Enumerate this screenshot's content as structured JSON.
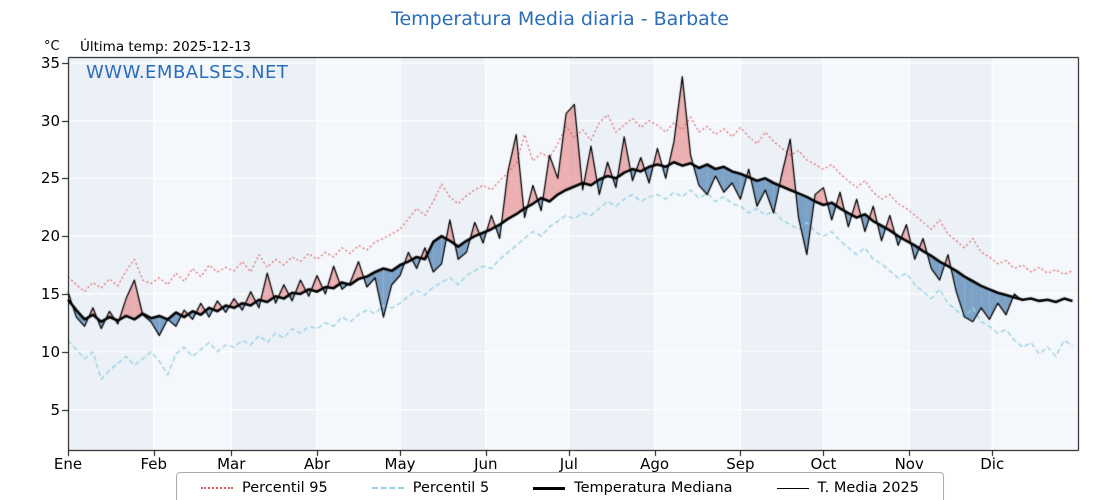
{
  "header": {
    "title": "Temperatura Media diaria - Barbate",
    "unit_label": "°C",
    "last_temp": "Última temp: 2025-12-13",
    "watermark": "WWW.EMBALSES.NET"
  },
  "colors": {
    "title": "#2a6db8",
    "watermark": "#2a6db8",
    "p95": "#dd5a5a",
    "p5": "#9ad1e6",
    "median": "#000000",
    "t2025": "#000000",
    "fill_above": "rgba(228,105,105,0.5)",
    "fill_below": "rgba(92,138,184,0.78)",
    "band": "#ecf1f7",
    "band_alt": "#f4f7fb",
    "grid": "#ffffff",
    "frame": "#000000"
  },
  "legend": {
    "items": [
      {
        "label": "Percentil 95",
        "style": "dotted",
        "color": "#dd5a5a"
      },
      {
        "label": "Percentil 5",
        "style": "dashed",
        "color": "#9ad1e6"
      },
      {
        "label": "Temperatura Mediana",
        "style": "solid-thick",
        "color": "#000000"
      },
      {
        "label": "T. Media 2025",
        "style": "solid-thin",
        "color": "#000000"
      }
    ]
  },
  "chart_data": {
    "type": "line",
    "title": "Temperatura Media diaria - Barbate",
    "xlabel": "",
    "ylabel": "°C",
    "xlim": [
      0,
      365
    ],
    "ylim": [
      1.5,
      35.5
    ],
    "grid": true,
    "legend_position": "bottom",
    "x_unit": "day_of_year",
    "x_step": 3,
    "x_tick_labels": [
      "Ene",
      "Feb",
      "Mar",
      "Abr",
      "May",
      "Jun",
      "Jul",
      "Ago",
      "Sep",
      "Oct",
      "Nov",
      "Dic"
    ],
    "month_start_days": [
      0,
      31,
      59,
      90,
      120,
      151,
      181,
      212,
      243,
      273,
      304,
      334
    ],
    "y_ticks": [
      5,
      10,
      15,
      20,
      25,
      30,
      35
    ],
    "series": [
      {
        "name": "Percentil 95",
        "values": [
          16.5,
          15.8,
          15.2,
          16.0,
          15.5,
          16.3,
          15.7,
          17.0,
          18.0,
          16.2,
          15.9,
          16.4,
          15.8,
          16.8,
          16.1,
          17.2,
          16.5,
          17.5,
          16.9,
          17.3,
          17.0,
          17.8,
          16.9,
          18.4,
          17.3,
          18.0,
          17.5,
          18.2,
          17.8,
          18.5,
          18.0,
          18.6,
          18.2,
          19.0,
          18.5,
          19.2,
          18.8,
          19.5,
          19.8,
          20.2,
          20.6,
          21.5,
          22.4,
          21.8,
          23.0,
          24.5,
          23.4,
          22.8,
          23.5,
          24.0,
          24.4,
          24.0,
          24.8,
          25.5,
          26.3,
          28.8,
          26.5,
          27.2,
          26.8,
          28.0,
          29.5,
          28.5,
          29.2,
          28.3,
          29.8,
          30.5,
          29.0,
          29.6,
          30.2,
          29.4,
          30.0,
          29.6,
          29.0,
          29.8,
          29.2,
          30.3,
          29.0,
          29.5,
          28.8,
          29.3,
          28.6,
          29.4,
          28.6,
          28.0,
          29.0,
          28.2,
          27.6,
          27.0,
          27.4,
          26.6,
          26.2,
          25.8,
          26.2,
          25.4,
          24.8,
          24.2,
          24.8,
          23.8,
          23.2,
          23.6,
          22.8,
          22.4,
          21.8,
          21.2,
          20.6,
          21.4,
          20.2,
          19.6,
          19.0,
          19.8,
          18.6,
          18.2,
          17.6,
          17.9,
          17.2,
          17.5,
          16.9,
          17.3,
          16.8,
          17.1,
          16.7,
          17.0
        ]
      },
      {
        "name": "Percentil 5",
        "values": [
          11.0,
          10.2,
          9.4,
          10.0,
          7.6,
          8.4,
          9.0,
          9.6,
          8.8,
          9.4,
          10.0,
          9.2,
          8.0,
          9.8,
          10.4,
          9.6,
          10.2,
          10.8,
          10.0,
          10.6,
          10.4,
          11.0,
          10.6,
          11.4,
          10.8,
          11.6,
          11.2,
          12.0,
          11.6,
          12.2,
          12.0,
          12.5,
          12.2,
          13.0,
          12.6,
          13.2,
          13.6,
          13.3,
          14.0,
          13.8,
          14.2,
          14.8,
          15.3,
          14.9,
          15.6,
          16.0,
          16.4,
          15.8,
          16.6,
          17.0,
          17.4,
          17.2,
          18.0,
          18.6,
          19.2,
          19.8,
          20.4,
          20.0,
          20.8,
          21.3,
          21.8,
          21.5,
          22.0,
          21.8,
          22.4,
          23.0,
          22.6,
          23.2,
          23.6,
          23.0,
          23.4,
          23.6,
          23.2,
          23.8,
          23.4,
          24.0,
          23.3,
          23.7,
          23.0,
          23.4,
          22.8,
          22.6,
          22.0,
          22.4,
          21.8,
          22.2,
          21.4,
          21.0,
          20.6,
          21.2,
          20.4,
          20.0,
          20.4,
          19.6,
          19.0,
          18.4,
          19.0,
          18.0,
          17.6,
          17.0,
          16.4,
          16.8,
          15.8,
          15.2,
          14.6,
          15.4,
          14.2,
          13.6,
          13.0,
          13.8,
          12.6,
          12.2,
          11.6,
          11.9,
          11.0,
          10.4,
          10.8,
          9.8,
          10.4,
          9.6,
          11.0,
          10.5
        ]
      },
      {
        "name": "Temperatura Mediana",
        "values": [
          14.5,
          13.6,
          12.8,
          13.2,
          12.6,
          13.0,
          12.7,
          13.1,
          12.8,
          13.3,
          12.9,
          13.1,
          12.8,
          13.4,
          13.0,
          13.5,
          13.2,
          13.8,
          13.5,
          14.0,
          13.8,
          14.2,
          14.0,
          14.5,
          14.3,
          14.8,
          14.6,
          15.1,
          15.0,
          15.4,
          15.2,
          15.6,
          15.5,
          16.0,
          15.8,
          16.3,
          16.5,
          16.9,
          17.2,
          17.0,
          17.5,
          17.8,
          18.2,
          18.0,
          19.5,
          20.0,
          19.6,
          19.1,
          19.6,
          20.0,
          20.3,
          20.6,
          21.0,
          21.5,
          21.9,
          22.4,
          22.8,
          23.3,
          23.0,
          23.6,
          24.0,
          24.3,
          24.6,
          24.4,
          24.9,
          25.2,
          25.0,
          25.5,
          25.8,
          25.6,
          26.0,
          26.2,
          26.0,
          26.4,
          26.1,
          26.3,
          25.9,
          26.2,
          25.8,
          26.0,
          25.6,
          25.4,
          25.1,
          24.8,
          25.0,
          24.6,
          24.3,
          24.0,
          23.7,
          23.4,
          23.0,
          22.7,
          22.9,
          22.4,
          22.0,
          21.6,
          21.9,
          21.3,
          20.9,
          20.5,
          20.0,
          19.6,
          19.2,
          18.7,
          18.3,
          17.8,
          17.4,
          17.0,
          16.5,
          16.1,
          15.7,
          15.4,
          15.1,
          14.9,
          14.7,
          14.5,
          14.6,
          14.4,
          14.5,
          14.3,
          14.6,
          14.4
        ]
      },
      {
        "name": "T. Media 2025",
        "values": [
          15.2,
          13.0,
          12.2,
          13.8,
          12.0,
          13.5,
          12.4,
          14.6,
          16.2,
          13.2,
          12.6,
          11.4,
          12.8,
          12.2,
          13.6,
          12.8,
          14.2,
          13.0,
          14.4,
          13.4,
          14.6,
          13.6,
          15.2,
          13.8,
          16.8,
          14.2,
          15.8,
          14.4,
          16.2,
          14.8,
          16.6,
          15.0,
          17.4,
          15.4,
          16.0,
          17.8,
          15.6,
          16.4,
          13.0,
          15.8,
          16.6,
          18.6,
          17.2,
          19.0,
          16.9,
          17.6,
          21.4,
          18.0,
          18.6,
          21.2,
          19.4,
          21.8,
          19.8,
          25.6,
          28.8,
          21.6,
          24.4,
          22.2,
          27.0,
          25.0,
          30.6,
          31.4,
          24.0,
          27.8,
          23.6,
          26.4,
          24.2,
          28.6,
          24.8,
          26.8,
          24.6,
          27.6,
          25.0,
          28.2,
          33.8,
          27.0,
          24.4,
          23.6,
          25.2,
          23.8,
          24.6,
          23.2,
          25.8,
          22.6,
          24.0,
          22.0,
          25.4,
          28.4,
          21.6,
          18.4,
          23.6,
          24.2,
          21.4,
          23.8,
          20.8,
          23.2,
          20.4,
          22.6,
          19.6,
          21.8,
          19.2,
          21.0,
          18.0,
          19.8,
          17.2,
          16.2,
          18.4,
          15.2,
          13.0,
          12.6,
          13.8,
          12.8,
          14.2,
          13.2,
          15.0,
          14.4
        ]
      }
    ]
  }
}
